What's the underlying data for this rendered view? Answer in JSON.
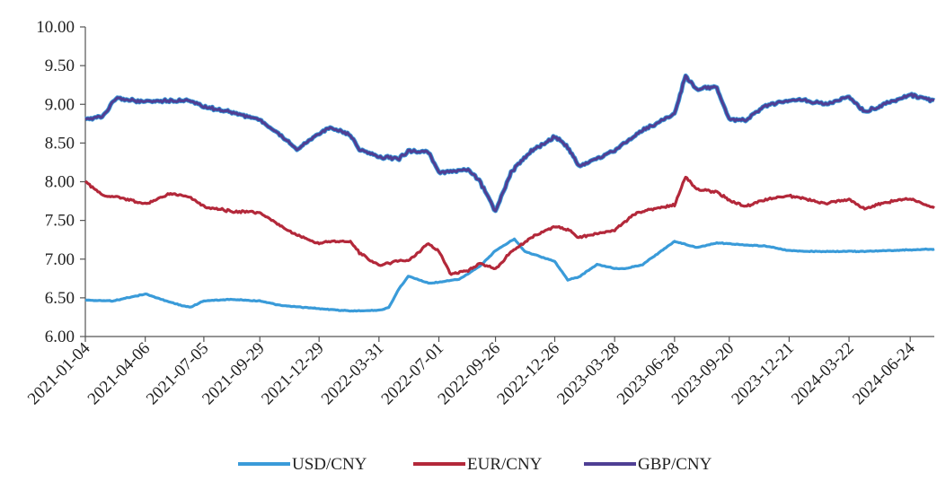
{
  "chart_data": {
    "type": "line",
    "title": "",
    "xlabel": "",
    "ylabel": "",
    "x_start": "2021-01-04",
    "x_end": "2024-07-31",
    "ylim": [
      6.0,
      10.0
    ],
    "y_ticks": [
      "6.00",
      "6.50",
      "7.00",
      "7.50",
      "8.00",
      "8.50",
      "9.00",
      "9.50",
      "10.00"
    ],
    "x_ticks": [
      "2021-01-04",
      "2021-04-06",
      "2021-07-05",
      "2021-09-29",
      "2021-12-29",
      "2022-03-31",
      "2022-07-01",
      "2022-09-26",
      "2022-12-26",
      "2023-03-28",
      "2023-06-28",
      "2023-09-20",
      "2023-12-21",
      "2024-03-22",
      "2024-06-24"
    ],
    "grid": false,
    "legend_position": "bottom",
    "series": [
      {
        "name": "USD/CNY",
        "color": "#3a9bd9",
        "points": [
          [
            "2021-01-04",
            6.47
          ],
          [
            "2021-02-15",
            6.46
          ],
          [
            "2021-03-15",
            6.51
          ],
          [
            "2021-04-06",
            6.55
          ],
          [
            "2021-05-01",
            6.48
          ],
          [
            "2021-06-01",
            6.4
          ],
          [
            "2021-06-15",
            6.38
          ],
          [
            "2021-07-05",
            6.46
          ],
          [
            "2021-08-15",
            6.48
          ],
          [
            "2021-09-29",
            6.46
          ],
          [
            "2021-11-01",
            6.4
          ],
          [
            "2021-12-29",
            6.36
          ],
          [
            "2022-02-15",
            6.33
          ],
          [
            "2022-03-31",
            6.34
          ],
          [
            "2022-04-15",
            6.37
          ],
          [
            "2022-05-01",
            6.62
          ],
          [
            "2022-05-15",
            6.78
          ],
          [
            "2022-06-15",
            6.69
          ],
          [
            "2022-07-01",
            6.7
          ],
          [
            "2022-08-01",
            6.74
          ],
          [
            "2022-09-01",
            6.9
          ],
          [
            "2022-09-26",
            7.11
          ],
          [
            "2022-10-25",
            7.26
          ],
          [
            "2022-11-10",
            7.1
          ],
          [
            "2022-12-26",
            6.97
          ],
          [
            "2023-01-15",
            6.73
          ],
          [
            "2023-02-01",
            6.77
          ],
          [
            "2023-03-01",
            6.93
          ],
          [
            "2023-03-28",
            6.88
          ],
          [
            "2023-04-15",
            6.88
          ],
          [
            "2023-05-10",
            6.93
          ],
          [
            "2023-06-28",
            7.23
          ],
          [
            "2023-08-01",
            7.15
          ],
          [
            "2023-09-01",
            7.21
          ],
          [
            "2023-09-20",
            7.2
          ],
          [
            "2023-10-15",
            7.18
          ],
          [
            "2023-11-15",
            7.17
          ],
          [
            "2023-12-21",
            7.11
          ],
          [
            "2024-01-15",
            7.1
          ],
          [
            "2024-03-22",
            7.1
          ],
          [
            "2024-04-15",
            7.1
          ],
          [
            "2024-06-24",
            7.12
          ],
          [
            "2024-07-31",
            7.13
          ]
        ]
      },
      {
        "name": "EUR/CNY",
        "color": "#b3283a",
        "points": [
          [
            "2021-01-04",
            8.0
          ],
          [
            "2021-02-01",
            7.82
          ],
          [
            "2021-03-01",
            7.79
          ],
          [
            "2021-04-06",
            7.71
          ],
          [
            "2021-05-15",
            7.85
          ],
          [
            "2021-06-15",
            7.8
          ],
          [
            "2021-07-05",
            7.68
          ],
          [
            "2021-08-15",
            7.62
          ],
          [
            "2021-09-29",
            7.6
          ],
          [
            "2021-11-15",
            7.35
          ],
          [
            "2021-12-29",
            7.2
          ],
          [
            "2022-01-15",
            7.23
          ],
          [
            "2022-02-15",
            7.23
          ],
          [
            "2022-03-01",
            7.08
          ],
          [
            "2022-03-31",
            6.92
          ],
          [
            "2022-04-15",
            6.95
          ],
          [
            "2022-05-01",
            6.98
          ],
          [
            "2022-05-15",
            6.98
          ],
          [
            "2022-06-15",
            7.2
          ],
          [
            "2022-07-01",
            7.1
          ],
          [
            "2022-07-20",
            6.8
          ],
          [
            "2022-08-15",
            6.85
          ],
          [
            "2022-09-01",
            6.95
          ],
          [
            "2022-09-26",
            6.87
          ],
          [
            "2022-10-20",
            7.1
          ],
          [
            "2022-11-20",
            7.28
          ],
          [
            "2022-12-26",
            7.42
          ],
          [
            "2023-01-15",
            7.38
          ],
          [
            "2023-02-01",
            7.28
          ],
          [
            "2023-03-28",
            7.38
          ],
          [
            "2023-05-01",
            7.6
          ],
          [
            "2023-06-28",
            7.7
          ],
          [
            "2023-07-15",
            8.06
          ],
          [
            "2023-08-01",
            7.9
          ],
          [
            "2023-09-01",
            7.87
          ],
          [
            "2023-09-20",
            7.76
          ],
          [
            "2023-10-15",
            7.68
          ],
          [
            "2023-11-15",
            7.77
          ],
          [
            "2023-12-21",
            7.82
          ],
          [
            "2024-01-15",
            7.78
          ],
          [
            "2024-02-15",
            7.72
          ],
          [
            "2024-03-22",
            7.77
          ],
          [
            "2024-04-15",
            7.65
          ],
          [
            "2024-05-15",
            7.73
          ],
          [
            "2024-06-24",
            7.78
          ],
          [
            "2024-07-31",
            7.66
          ]
        ]
      },
      {
        "name": "GBP/CNY",
        "color": "#4f3f94",
        "points": [
          [
            "2021-01-04",
            8.8
          ],
          [
            "2021-02-01",
            8.85
          ],
          [
            "2021-02-20",
            9.08
          ],
          [
            "2021-04-06",
            9.03
          ],
          [
            "2021-05-15",
            9.05
          ],
          [
            "2021-06-15",
            9.05
          ],
          [
            "2021-07-05",
            8.97
          ],
          [
            "2021-08-15",
            8.9
          ],
          [
            "2021-09-29",
            8.8
          ],
          [
            "2021-11-01",
            8.6
          ],
          [
            "2021-11-25",
            8.42
          ],
          [
            "2021-12-29",
            8.62
          ],
          [
            "2022-01-15",
            8.7
          ],
          [
            "2022-02-15",
            8.6
          ],
          [
            "2022-03-01",
            8.42
          ],
          [
            "2022-03-31",
            8.32
          ],
          [
            "2022-05-01",
            8.3
          ],
          [
            "2022-05-15",
            8.4
          ],
          [
            "2022-06-15",
            8.38
          ],
          [
            "2022-07-01",
            8.12
          ],
          [
            "2022-08-15",
            8.15
          ],
          [
            "2022-09-01",
            8.02
          ],
          [
            "2022-09-26",
            7.62
          ],
          [
            "2022-10-20",
            8.12
          ],
          [
            "2022-11-20",
            8.4
          ],
          [
            "2022-12-26",
            8.58
          ],
          [
            "2023-01-15",
            8.45
          ],
          [
            "2023-02-01",
            8.2
          ],
          [
            "2023-03-28",
            8.4
          ],
          [
            "2023-05-01",
            8.62
          ],
          [
            "2023-06-28",
            8.88
          ],
          [
            "2023-07-15",
            9.37
          ],
          [
            "2023-08-01",
            9.2
          ],
          [
            "2023-09-01",
            9.22
          ],
          [
            "2023-09-20",
            8.8
          ],
          [
            "2023-10-15",
            8.8
          ],
          [
            "2023-11-15",
            8.98
          ],
          [
            "2023-12-21",
            9.05
          ],
          [
            "2024-01-15",
            9.05
          ],
          [
            "2024-02-15",
            9.0
          ],
          [
            "2024-03-22",
            9.1
          ],
          [
            "2024-04-15",
            8.9
          ],
          [
            "2024-05-15",
            9.0
          ],
          [
            "2024-06-24",
            9.12
          ],
          [
            "2024-07-31",
            9.05
          ]
        ]
      }
    ]
  }
}
